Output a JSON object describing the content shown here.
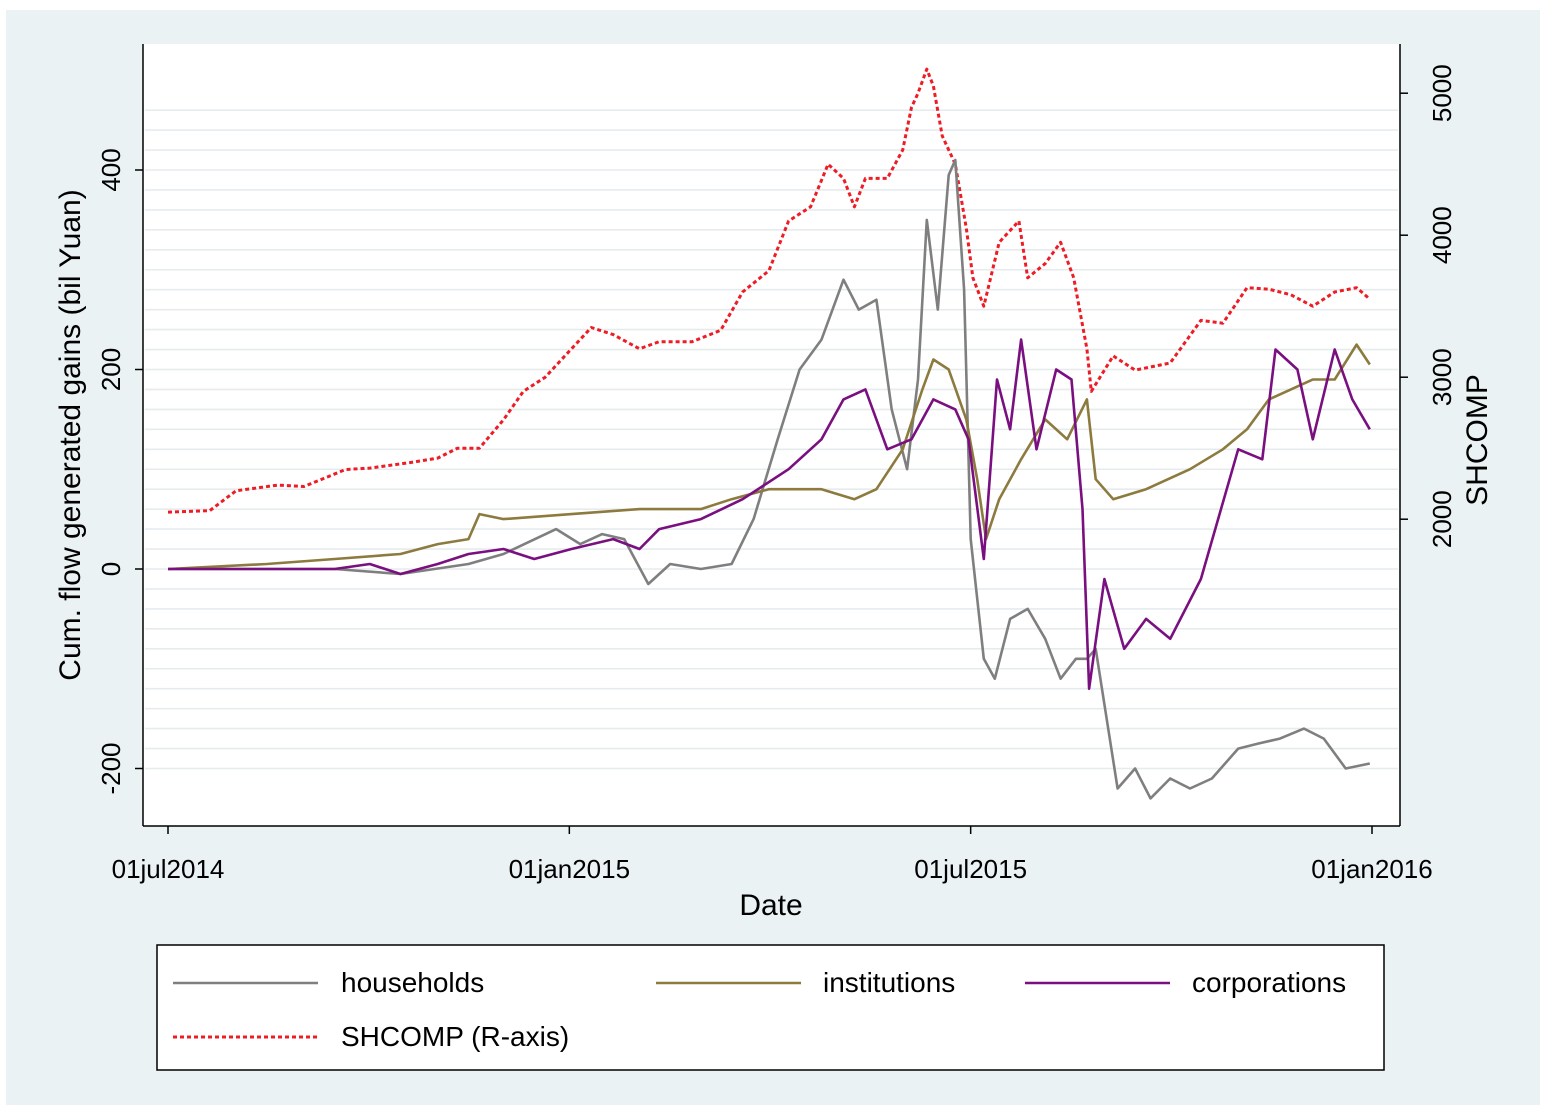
{
  "chart_data": {
    "type": "line",
    "xlabel": "Date",
    "ylabel": "Cum. flow generated gains (bil Yuan)",
    "y2label": "SHCOMP",
    "x_ticks": [
      "01jul2014",
      "01jan2015",
      "01jul2015",
      "01jan2016"
    ],
    "xlim": [
      "2014-07-01",
      "2016-01-01"
    ],
    "ylim": [
      -220,
      500
    ],
    "y_ticks": [
      -200,
      0,
      200,
      400
    ],
    "y2lim": [
      1640,
      5300
    ],
    "y2_ticks": [
      2000,
      3000,
      4000,
      5000
    ],
    "grid": "horizontal",
    "legend_position": "bottom",
    "colors": {
      "households": "#7f7f7f",
      "institutions": "#8c7a3e",
      "corporations": "#7a0f80",
      "shcomp": "#ee1c25",
      "background": "#eaf2f3"
    },
    "legend": [
      {
        "label": "households",
        "color": "#7f7f7f",
        "dash": false
      },
      {
        "label": "institutions",
        "color": "#8c7a3e",
        "dash": false
      },
      {
        "label": "corporations",
        "color": "#7a0f80",
        "dash": false
      },
      {
        "label": "SHCOMP (R-axis)",
        "color": "#ee1c25",
        "dash": true
      }
    ],
    "series": [
      {
        "name": "households",
        "axis": "left",
        "x": [
          "2014-07-01",
          "2014-08-15",
          "2014-09-15",
          "2014-10-15",
          "2014-11-15",
          "2014-12-01",
          "2014-12-25",
          "2015-01-05",
          "2015-01-15",
          "2015-01-25",
          "2015-02-05",
          "2015-02-15",
          "2015-03-01",
          "2015-03-15",
          "2015-03-25",
          "2015-04-05",
          "2015-04-15",
          "2015-04-25",
          "2015-05-05",
          "2015-05-12",
          "2015-05-20",
          "2015-05-27",
          "2015-06-03",
          "2015-06-08",
          "2015-06-12",
          "2015-06-17",
          "2015-06-22",
          "2015-06-25",
          "2015-06-29",
          "2015-07-02",
          "2015-07-08",
          "2015-07-13",
          "2015-07-20",
          "2015-07-28",
          "2015-08-05",
          "2015-08-12",
          "2015-08-19",
          "2015-08-24",
          "2015-08-28",
          "2015-09-07",
          "2015-09-15",
          "2015-09-22",
          "2015-10-01",
          "2015-10-10",
          "2015-10-20",
          "2015-11-01",
          "2015-11-10",
          "2015-11-20",
          "2015-12-01",
          "2015-12-10",
          "2015-12-20",
          "2015-12-31"
        ],
        "y": [
          0,
          0,
          0,
          -5,
          5,
          15,
          40,
          25,
          35,
          30,
          -15,
          5,
          0,
          5,
          50,
          130,
          200,
          230,
          290,
          260,
          270,
          160,
          100,
          190,
          350,
          260,
          395,
          410,
          280,
          30,
          -90,
          -110,
          -50,
          -40,
          -70,
          -110,
          -90,
          -90,
          -80,
          -220,
          -200,
          -230,
          -210,
          -220,
          -210,
          -180,
          -175,
          -170,
          -160,
          -170,
          -200,
          -195
        ]
      },
      {
        "name": "institutions",
        "axis": "left",
        "x": [
          "2014-07-01",
          "2014-08-15",
          "2014-09-15",
          "2014-10-15",
          "2014-11-01",
          "2014-11-15",
          "2014-11-20",
          "2014-12-01",
          "2015-01-01",
          "2015-02-01",
          "2015-03-01",
          "2015-03-15",
          "2015-04-01",
          "2015-04-15",
          "2015-04-25",
          "2015-05-10",
          "2015-05-20",
          "2015-06-01",
          "2015-06-10",
          "2015-06-15",
          "2015-06-22",
          "2015-06-30",
          "2015-07-05",
          "2015-07-09",
          "2015-07-15",
          "2015-07-25",
          "2015-08-05",
          "2015-08-15",
          "2015-08-24",
          "2015-08-28",
          "2015-09-05",
          "2015-09-20",
          "2015-10-10",
          "2015-10-25",
          "2015-11-05",
          "2015-11-15",
          "2015-11-25",
          "2015-12-05",
          "2015-12-15",
          "2015-12-25",
          "2015-12-31"
        ],
        "y": [
          0,
          5,
          10,
          15,
          25,
          30,
          55,
          50,
          55,
          60,
          60,
          70,
          80,
          80,
          80,
          70,
          80,
          120,
          180,
          210,
          200,
          150,
          90,
          30,
          70,
          110,
          150,
          130,
          170,
          90,
          70,
          80,
          100,
          120,
          140,
          170,
          180,
          190,
          190,
          225,
          205
        ]
      },
      {
        "name": "corporations",
        "axis": "left",
        "x": [
          "2014-07-01",
          "2014-08-15",
          "2014-09-15",
          "2014-10-01",
          "2014-10-15",
          "2014-11-01",
          "2014-11-15",
          "2014-12-01",
          "2014-12-15",
          "2015-01-01",
          "2015-01-20",
          "2015-02-01",
          "2015-02-10",
          "2015-03-01",
          "2015-03-20",
          "2015-04-10",
          "2015-04-25",
          "2015-05-05",
          "2015-05-15",
          "2015-05-25",
          "2015-06-05",
          "2015-06-15",
          "2015-06-25",
          "2015-07-01",
          "2015-07-08",
          "2015-07-14",
          "2015-07-20",
          "2015-07-25",
          "2015-08-01",
          "2015-08-10",
          "2015-08-17",
          "2015-08-22",
          "2015-08-25",
          "2015-09-01",
          "2015-09-10",
          "2015-09-20",
          "2015-10-01",
          "2015-10-15",
          "2015-11-01",
          "2015-11-12",
          "2015-11-18",
          "2015-11-28",
          "2015-12-05",
          "2015-12-15",
          "2015-12-23",
          "2015-12-31"
        ],
        "y": [
          0,
          0,
          0,
          5,
          -5,
          5,
          15,
          20,
          10,
          20,
          30,
          20,
          40,
          50,
          70,
          100,
          130,
          170,
          180,
          120,
          130,
          170,
          160,
          130,
          10,
          190,
          140,
          230,
          120,
          200,
          190,
          60,
          -120,
          -10,
          -80,
          -50,
          -70,
          -10,
          120,
          110,
          220,
          200,
          130,
          220,
          170,
          140
        ]
      },
      {
        "name": "SHCOMP",
        "axis": "right",
        "x": [
          "2014-07-01",
          "2014-07-20",
          "2014-08-01",
          "2014-08-20",
          "2014-09-01",
          "2014-09-20",
          "2014-10-01",
          "2014-10-20",
          "2014-11-01",
          "2014-11-10",
          "2014-11-20",
          "2014-12-01",
          "2014-12-10",
          "2014-12-20",
          "2015-01-01",
          "2015-01-10",
          "2015-01-20",
          "2015-02-01",
          "2015-02-10",
          "2015-02-25",
          "2015-03-10",
          "2015-03-20",
          "2015-04-01",
          "2015-04-10",
          "2015-04-20",
          "2015-04-28",
          "2015-05-05",
          "2015-05-10",
          "2015-05-15",
          "2015-05-25",
          "2015-06-01",
          "2015-06-05",
          "2015-06-08",
          "2015-06-12",
          "2015-06-15",
          "2015-06-19",
          "2015-06-25",
          "2015-06-30",
          "2015-07-03",
          "2015-07-08",
          "2015-07-15",
          "2015-07-24",
          "2015-07-28",
          "2015-08-05",
          "2015-08-12",
          "2015-08-18",
          "2015-08-24",
          "2015-08-26",
          "2015-09-05",
          "2015-09-15",
          "2015-10-01",
          "2015-10-15",
          "2015-10-25",
          "2015-11-05",
          "2015-11-15",
          "2015-11-25",
          "2015-12-05",
          "2015-12-15",
          "2015-12-25",
          "2015-12-31"
        ],
        "y": [
          2050,
          2060,
          2200,
          2240,
          2230,
          2350,
          2360,
          2400,
          2430,
          2500,
          2500,
          2700,
          2900,
          3000,
          3200,
          3350,
          3300,
          3200,
          3250,
          3250,
          3330,
          3600,
          3750,
          4100,
          4200,
          4500,
          4400,
          4200,
          4400,
          4400,
          4600,
          4900,
          5000,
          5170,
          5050,
          4700,
          4500,
          4050,
          3700,
          3500,
          3950,
          4100,
          3700,
          3800,
          3950,
          3700,
          3200,
          2900,
          3150,
          3050,
          3100,
          3400,
          3380,
          3630,
          3620,
          3580,
          3500,
          3600,
          3630,
          3550
        ]
      }
    ]
  }
}
